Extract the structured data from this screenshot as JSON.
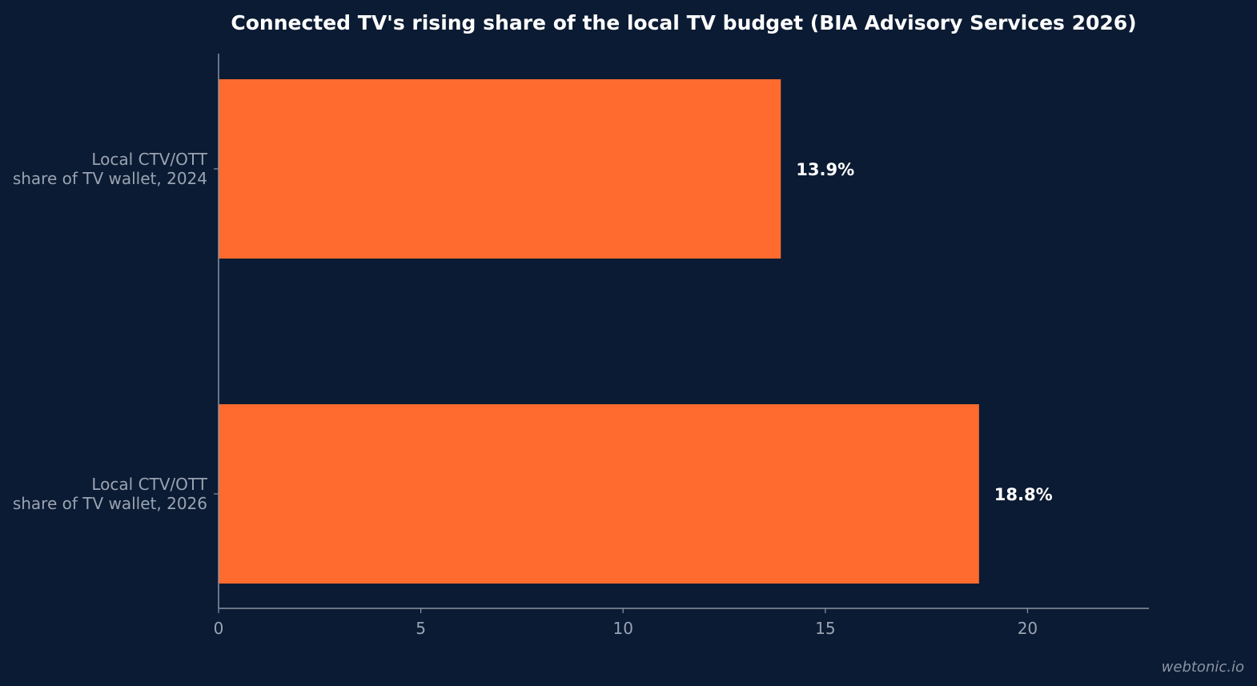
{
  "chart_data": {
    "type": "bar",
    "orientation": "horizontal",
    "title": "Connected TV's rising share of the local TV budget (BIA Advisory Services 2026)",
    "categories": [
      [
        "Local CTV/OTT",
        "share of TV wallet, 2024"
      ],
      [
        "Local CTV/OTT",
        "share of TV wallet, 2026"
      ]
    ],
    "values": [
      13.9,
      18.8
    ],
    "value_labels": [
      "13.9%",
      "18.8%"
    ],
    "xlim": [
      0,
      23
    ],
    "xticks": [
      0,
      5,
      10,
      15,
      20
    ],
    "xlabel": "",
    "ylabel": "",
    "grid": false,
    "colors": {
      "background": "#0b1b33",
      "bar": "#ff6b2e",
      "axis": "#8a93a3",
      "tick_text": "#9aa3b2",
      "title_text": "#ffffff",
      "value_text": "#ffffff"
    }
  },
  "watermark": "webtonic.io"
}
